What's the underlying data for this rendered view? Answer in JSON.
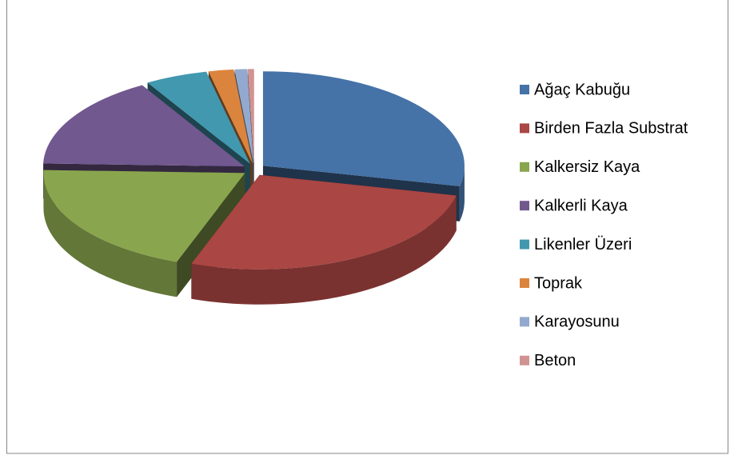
{
  "chart_data": {
    "type": "pie3d",
    "categories": [
      "Ağaç Kabuğu",
      "Birden Fazla Substrat",
      "Kalkersiz Kaya",
      "Kalkerli Kaya",
      " Likenler Üzeri",
      "Toprak",
      "Karayosunu",
      "Beton"
    ],
    "values": [
      28.5,
      27,
      20,
      16,
      5,
      2,
      1,
      0.5
    ],
    "colors": [
      "#4572a7",
      "#aa4643",
      "#89a54e",
      "#71588f",
      "#4198af",
      "#db843d",
      "#93a9cf",
      "#d19392"
    ],
    "legend": "right"
  }
}
